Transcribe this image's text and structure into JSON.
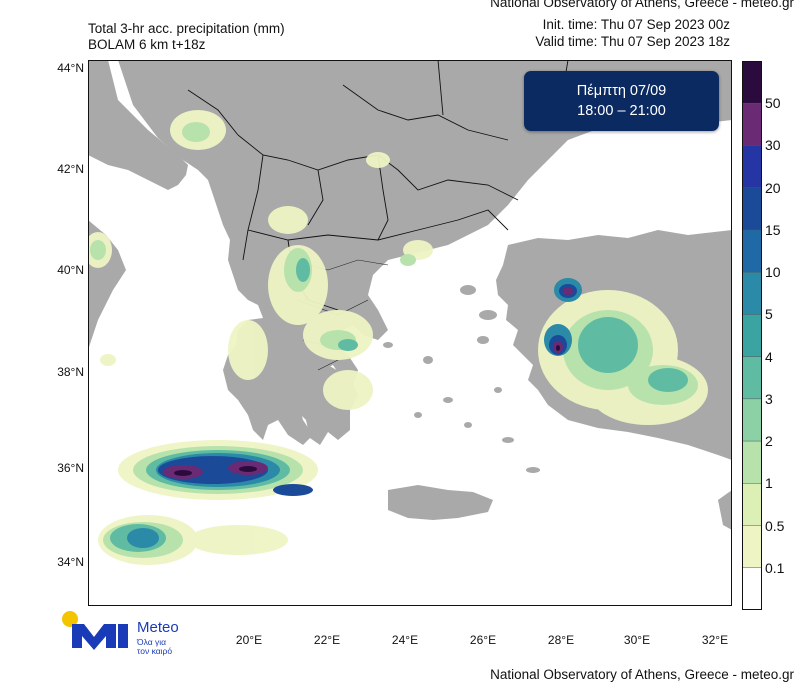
{
  "header": {
    "title_line1": "Total 3-hr acc. precipitation (mm)",
    "title_line2": "BOLAM 6 km t+18z",
    "credit": "National Observatory of Athens, Greece - meteo.gr",
    "init_time": "Init. time: Thu 07 Sep 2023 00z",
    "valid_time": "Valid time: Thu 07 Sep 2023 18z"
  },
  "date_box": {
    "line1": "Πέμπτη 07/09",
    "line2": "18:00 – 21:00"
  },
  "map": {
    "extent": {
      "lon_min": 17,
      "lon_max": 33,
      "lat_min": 33,
      "lat_max": 44
    },
    "lat_labels": [
      "44°N",
      "42°N",
      "40°N",
      "38°N",
      "36°N",
      "34°N"
    ],
    "lon_labels": [
      "20°E",
      "22°E",
      "24°E",
      "26°E",
      "28°E",
      "30°E",
      "32°E"
    ],
    "land_color": "#a9a9a9",
    "sea_color": "#ffffff",
    "border_color": "#111111"
  },
  "legend": {
    "colors": [
      "#ffffff",
      "#eef4c4",
      "#dcefb4",
      "#b8e2ac",
      "#8cd0a6",
      "#5fbca2",
      "#3aa4a3",
      "#2a8aa8",
      "#1f6aa6",
      "#1b4b98",
      "#2536a4",
      "#6a2a74",
      "#2b0b3e"
    ],
    "labels": [
      "0.1",
      "0.5",
      "1",
      "2",
      "3",
      "4",
      "5",
      "10",
      "15",
      "20",
      "30",
      "50"
    ]
  },
  "footer": {
    "credit": "National Observatory of Athens, Greece - meteo.gr",
    "logo_word": "Meteo",
    "logo_sub1": "Όλα για",
    "logo_sub2": "τον καιρό",
    "logo_dot_color": "#f5c400",
    "logo_mark_color": "#1a3bb8"
  }
}
